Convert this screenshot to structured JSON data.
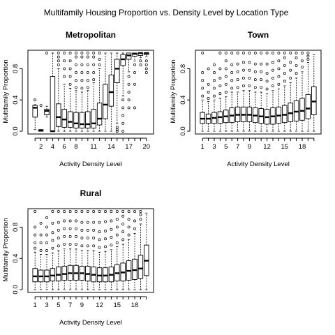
{
  "figure": {
    "title": "Multifamily Housing Proportion vs. Density Level by Location Type"
  },
  "chart_data": [
    {
      "type": "boxplot",
      "title": "Metropolitan",
      "xlabel": "Activity Density Level",
      "ylabel": "Multifamily Proportion",
      "ylim": [
        0,
        1
      ],
      "yticks": [
        0.0,
        0.4,
        0.8
      ],
      "x_tick_labels": [
        "2",
        "4",
        "6",
        "8",
        "11",
        "14",
        "17",
        "20"
      ],
      "boxes": [
        {
          "level": 1,
          "min": 0.02,
          "q1": 0.18,
          "median": 0.3,
          "q3": 0.33,
          "max": 0.34,
          "outliers": [
            0.4
          ]
        },
        {
          "level": 2,
          "min": 0.0,
          "q1": 0.0,
          "median": 0.01,
          "q3": 0.02,
          "max": 0.02,
          "outliers": [
            0.33
          ]
        },
        {
          "level": 3,
          "min": 0.18,
          "q1": 0.21,
          "median": 0.26,
          "q3": 0.28,
          "max": 0.32,
          "outliers": [
            1.0
          ]
        },
        {
          "level": 4,
          "min": 0.0,
          "q1": 0.0,
          "median": 0.0,
          "q3": 0.7,
          "max": 1.0,
          "outliers": []
        },
        {
          "level": 5,
          "min": 0.0,
          "q1": 0.06,
          "median": 0.18,
          "q3": 0.35,
          "max": 0.8,
          "outliers": [
            0.85,
            0.9,
            0.95,
            1.0
          ]
        },
        {
          "level": 6,
          "min": 0.0,
          "q1": 0.05,
          "median": 0.15,
          "q3": 0.28,
          "max": 0.6,
          "outliers": [
            0.7,
            0.8,
            0.9,
            1.0
          ]
        },
        {
          "level": 7,
          "min": 0.0,
          "q1": 0.05,
          "median": 0.12,
          "q3": 0.25,
          "max": 0.55,
          "outliers": [
            0.6,
            0.7,
            0.8,
            0.9,
            1.0
          ]
        },
        {
          "level": 8,
          "min": 0.0,
          "q1": 0.04,
          "median": 0.1,
          "q3": 0.24,
          "max": 0.52,
          "outliers": [
            0.56,
            0.65,
            0.75,
            0.85,
            0.95,
            1.0
          ]
        },
        {
          "level": 9,
          "min": 0.0,
          "q1": 0.04,
          "median": 0.09,
          "q3": 0.24,
          "max": 0.5,
          "outliers": [
            0.55,
            0.65,
            0.75,
            0.85,
            0.95,
            1.0
          ]
        },
        {
          "level": 10,
          "min": 0.0,
          "q1": 0.04,
          "median": 0.09,
          "q3": 0.25,
          "max": 0.52,
          "outliers": [
            0.56,
            0.65,
            0.75,
            0.85,
            0.95,
            1.0
          ]
        },
        {
          "level": 11,
          "min": 0.0,
          "q1": 0.04,
          "median": 0.1,
          "q3": 0.28,
          "max": 0.62,
          "outliers": [
            0.66,
            0.75,
            0.85,
            0.95,
            1.0
          ]
        },
        {
          "level": 12,
          "min": 0.0,
          "q1": 0.08,
          "median": 0.16,
          "q3": 0.36,
          "max": 0.8,
          "outliers": [
            0.85,
            0.92,
            1.0
          ]
        },
        {
          "level": 13,
          "min": 0.0,
          "q1": 0.16,
          "median": 0.34,
          "q3": 0.6,
          "max": 1.0,
          "outliers": []
        },
        {
          "level": 14,
          "min": 0.0,
          "q1": 0.32,
          "median": 0.5,
          "q3": 0.72,
          "max": 1.0,
          "outliers": []
        },
        {
          "level": 15,
          "min": 0.1,
          "q1": 0.62,
          "median": 0.8,
          "q3": 0.92,
          "max": 1.0,
          "outliers": [
            0.05,
            0.02,
            0.0
          ]
        },
        {
          "level": 16,
          "min": 0.45,
          "q1": 0.84,
          "median": 0.92,
          "q3": 0.98,
          "max": 1.0,
          "outliers": [
            0.4,
            0.3,
            0.2,
            0.1,
            0.0
          ]
        },
        {
          "level": 17,
          "min": 0.76,
          "q1": 0.92,
          "median": 0.97,
          "q3": 1.0,
          "max": 1.0,
          "outliers": [
            0.7,
            0.6,
            0.5,
            0.4,
            0.3
          ]
        },
        {
          "level": 18,
          "min": 0.9,
          "q1": 0.96,
          "median": 0.99,
          "q3": 1.0,
          "max": 1.0,
          "outliers": [
            0.85,
            0.75,
            0.6,
            0.3
          ]
        },
        {
          "level": 19,
          "min": 0.94,
          "q1": 0.97,
          "median": 1.0,
          "q3": 1.0,
          "max": 1.0,
          "outliers": [
            0.9,
            0.85
          ]
        },
        {
          "level": 20,
          "min": 0.95,
          "q1": 0.98,
          "median": 1.0,
          "q3": 1.0,
          "max": 1.0,
          "outliers": [
            0.9,
            0.85,
            0.8,
            0.75
          ]
        }
      ]
    },
    {
      "type": "boxplot",
      "title": "Town",
      "xlabel": "Activity Density Level",
      "ylabel": "Multifamily Proportion",
      "ylim": [
        0,
        1
      ],
      "yticks": [
        0.0,
        0.4,
        0.8
      ],
      "x_tick_labels": [
        "1",
        "3",
        "5",
        "7",
        "9",
        "12",
        "15",
        "18"
      ],
      "boxes": [
        {
          "level": 1,
          "min": 0.0,
          "q1": 0.1,
          "median": 0.16,
          "q3": 0.24,
          "max": 0.4,
          "outliers": [
            0.45,
            0.55,
            0.65,
            0.75,
            1.0
          ]
        },
        {
          "level": 2,
          "min": 0.0,
          "q1": 0.1,
          "median": 0.16,
          "q3": 0.22,
          "max": 0.38,
          "outliers": [
            0.42,
            0.5,
            0.6,
            0.8
          ]
        },
        {
          "level": 3,
          "min": 0.0,
          "q1": 0.1,
          "median": 0.17,
          "q3": 0.24,
          "max": 0.4,
          "outliers": [
            0.45,
            0.55,
            0.65,
            0.75,
            0.85
          ]
        },
        {
          "level": 4,
          "min": 0.0,
          "q1": 0.1,
          "median": 0.18,
          "q3": 0.25,
          "max": 0.42,
          "outliers": [
            0.48,
            0.58,
            0.68,
            0.8,
            1.0
          ]
        },
        {
          "level": 5,
          "min": 0.0,
          "q1": 0.11,
          "median": 0.19,
          "q3": 0.27,
          "max": 0.44,
          "outliers": [
            0.5,
            0.6,
            0.7,
            0.8,
            0.9,
            1.0
          ]
        },
        {
          "level": 6,
          "min": 0.0,
          "q1": 0.11,
          "median": 0.2,
          "q3": 0.3,
          "max": 0.5,
          "outliers": [
            0.55,
            0.65,
            0.75,
            0.85,
            1.0
          ]
        },
        {
          "level": 7,
          "min": 0.0,
          "q1": 0.12,
          "median": 0.21,
          "q3": 0.31,
          "max": 0.5,
          "outliers": [
            0.56,
            0.66,
            0.76,
            0.86,
            1.0
          ]
        },
        {
          "level": 8,
          "min": 0.0,
          "q1": 0.12,
          "median": 0.21,
          "q3": 0.31,
          "max": 0.52,
          "outliers": [
            0.58,
            0.68,
            0.78,
            0.88,
            1.0
          ]
        },
        {
          "level": 9,
          "min": 0.0,
          "q1": 0.12,
          "median": 0.21,
          "q3": 0.31,
          "max": 0.52,
          "outliers": [
            0.58,
            0.68,
            0.78,
            0.88,
            1.0
          ]
        },
        {
          "level": 10,
          "min": 0.0,
          "q1": 0.11,
          "median": 0.2,
          "q3": 0.3,
          "max": 0.5,
          "outliers": [
            0.56,
            0.66,
            0.76,
            0.86,
            1.0
          ]
        },
        {
          "level": 11,
          "min": 0.0,
          "q1": 0.1,
          "median": 0.19,
          "q3": 0.29,
          "max": 0.5,
          "outliers": [
            0.56,
            0.66,
            0.76,
            0.86,
            1.0
          ]
        },
        {
          "level": 12,
          "min": 0.0,
          "q1": 0.09,
          "median": 0.18,
          "q3": 0.28,
          "max": 0.48,
          "outliers": [
            0.54,
            0.64,
            0.74,
            0.86,
            1.0
          ]
        },
        {
          "level": 13,
          "min": 0.0,
          "q1": 0.09,
          "median": 0.19,
          "q3": 0.3,
          "max": 0.52,
          "outliers": [
            0.58,
            0.68,
            0.78,
            0.88,
            1.0
          ]
        },
        {
          "level": 14,
          "min": 0.0,
          "q1": 0.1,
          "median": 0.2,
          "q3": 0.31,
          "max": 0.54,
          "outliers": [
            0.6,
            0.7,
            0.8,
            0.9,
            1.0
          ]
        },
        {
          "level": 15,
          "min": 0.0,
          "q1": 0.11,
          "median": 0.21,
          "q3": 0.33,
          "max": 0.58,
          "outliers": [
            0.64,
            0.74,
            0.84,
            0.94,
            1.0
          ]
        },
        {
          "level": 16,
          "min": 0.0,
          "q1": 0.12,
          "median": 0.23,
          "q3": 0.36,
          "max": 0.62,
          "outliers": [
            0.68,
            0.78,
            0.88,
            1.0
          ]
        },
        {
          "level": 17,
          "min": 0.0,
          "q1": 0.13,
          "median": 0.25,
          "q3": 0.39,
          "max": 0.68,
          "outliers": [
            0.74,
            0.84,
            0.94,
            1.0
          ]
        },
        {
          "level": 18,
          "min": 0.0,
          "q1": 0.14,
          "median": 0.26,
          "q3": 0.42,
          "max": 0.76,
          "outliers": [
            0.82,
            0.9,
            1.0
          ]
        },
        {
          "level": 19,
          "min": 0.0,
          "q1": 0.16,
          "median": 0.29,
          "q3": 0.47,
          "max": 0.88,
          "outliers": [
            0.92,
            0.96,
            1.0
          ]
        },
        {
          "level": 20,
          "min": 0.0,
          "q1": 0.21,
          "median": 0.38,
          "q3": 0.57,
          "max": 0.98,
          "outliers": []
        }
      ]
    },
    {
      "type": "boxplot",
      "title": "Rural",
      "xlabel": "Activity Density Level",
      "ylabel": "Multifamily Proportion",
      "ylim": [
        0,
        1
      ],
      "yticks": [
        0.0,
        0.4,
        0.8
      ],
      "x_tick_labels": [
        "1",
        "3",
        "5",
        "7",
        "9",
        "12",
        "15",
        "18"
      ],
      "boxes": [
        {
          "level": 1,
          "min": 0.0,
          "q1": 0.1,
          "median": 0.17,
          "q3": 0.27,
          "max": 0.48,
          "outliers": [
            0.53,
            0.6,
            0.7,
            0.8,
            1.0
          ]
        },
        {
          "level": 2,
          "min": 0.0,
          "q1": 0.1,
          "median": 0.17,
          "q3": 0.25,
          "max": 0.45,
          "outliers": [
            0.5,
            0.6,
            0.7,
            0.85
          ]
        },
        {
          "level": 3,
          "min": 0.0,
          "q1": 0.1,
          "median": 0.17,
          "q3": 0.25,
          "max": 0.45,
          "outliers": [
            0.5,
            0.6,
            0.7,
            0.8,
            0.92
          ]
        },
        {
          "level": 4,
          "min": 0.0,
          "q1": 0.11,
          "median": 0.18,
          "q3": 0.27,
          "max": 0.47,
          "outliers": [
            0.53,
            0.63,
            0.73,
            0.85,
            1.0
          ]
        },
        {
          "level": 5,
          "min": 0.0,
          "q1": 0.11,
          "median": 0.19,
          "q3": 0.29,
          "max": 0.5,
          "outliers": [
            0.56,
            0.66,
            0.76,
            0.86,
            1.0
          ]
        },
        {
          "level": 6,
          "min": 0.0,
          "q1": 0.12,
          "median": 0.2,
          "q3": 0.3,
          "max": 0.52,
          "outliers": [
            0.58,
            0.68,
            0.78,
            0.88,
            1.0
          ]
        },
        {
          "level": 7,
          "min": 0.0,
          "q1": 0.12,
          "median": 0.21,
          "q3": 0.31,
          "max": 0.52,
          "outliers": [
            0.58,
            0.68,
            0.78,
            0.88,
            1.0
          ]
        },
        {
          "level": 8,
          "min": 0.0,
          "q1": 0.12,
          "median": 0.21,
          "q3": 0.31,
          "max": 0.52,
          "outliers": [
            0.58,
            0.68,
            0.78,
            0.88,
            1.0
          ]
        },
        {
          "level": 9,
          "min": 0.0,
          "q1": 0.12,
          "median": 0.21,
          "q3": 0.3,
          "max": 0.5,
          "outliers": [
            0.56,
            0.66,
            0.76,
            0.86,
            1.0
          ]
        },
        {
          "level": 10,
          "min": 0.0,
          "q1": 0.11,
          "median": 0.2,
          "q3": 0.3,
          "max": 0.5,
          "outliers": [
            0.56,
            0.66,
            0.76,
            0.86,
            1.0
          ]
        },
        {
          "level": 11,
          "min": 0.0,
          "q1": 0.1,
          "median": 0.19,
          "q3": 0.29,
          "max": 0.5,
          "outliers": [
            0.56,
            0.66,
            0.76,
            0.86,
            1.0
          ]
        },
        {
          "level": 12,
          "min": 0.0,
          "q1": 0.1,
          "median": 0.18,
          "q3": 0.28,
          "max": 0.48,
          "outliers": [
            0.54,
            0.64,
            0.74,
            0.86,
            1.0
          ]
        },
        {
          "level": 13,
          "min": 0.0,
          "q1": 0.1,
          "median": 0.18,
          "q3": 0.28,
          "max": 0.49,
          "outliers": [
            0.55,
            0.65,
            0.75,
            0.87,
            1.0
          ]
        },
        {
          "level": 14,
          "min": 0.0,
          "q1": 0.1,
          "median": 0.19,
          "q3": 0.29,
          "max": 0.51,
          "outliers": [
            0.57,
            0.67,
            0.77,
            0.88,
            1.0
          ]
        },
        {
          "level": 15,
          "min": 0.0,
          "q1": 0.11,
          "median": 0.21,
          "q3": 0.32,
          "max": 0.55,
          "outliers": [
            0.6,
            0.7,
            0.8,
            0.9,
            1.0
          ]
        },
        {
          "level": 16,
          "min": 0.0,
          "q1": 0.11,
          "median": 0.22,
          "q3": 0.34,
          "max": 0.58,
          "outliers": [
            0.64,
            0.74,
            0.84,
            0.94,
            1.0
          ]
        },
        {
          "level": 17,
          "min": 0.0,
          "q1": 0.12,
          "median": 0.24,
          "q3": 0.37,
          "max": 0.64,
          "outliers": [
            0.7,
            0.8,
            0.9,
            1.0
          ]
        },
        {
          "level": 18,
          "min": 0.0,
          "q1": 0.13,
          "median": 0.25,
          "q3": 0.39,
          "max": 0.72,
          "outliers": [
            0.78,
            0.88,
            1.0
          ]
        },
        {
          "level": 19,
          "min": 0.0,
          "q1": 0.14,
          "median": 0.27,
          "q3": 0.44,
          "max": 0.84,
          "outliers": [
            0.9,
            0.96,
            1.0
          ]
        },
        {
          "level": 20,
          "min": 0.0,
          "q1": 0.18,
          "median": 0.37,
          "q3": 0.57,
          "max": 0.98,
          "outliers": []
        }
      ]
    }
  ]
}
